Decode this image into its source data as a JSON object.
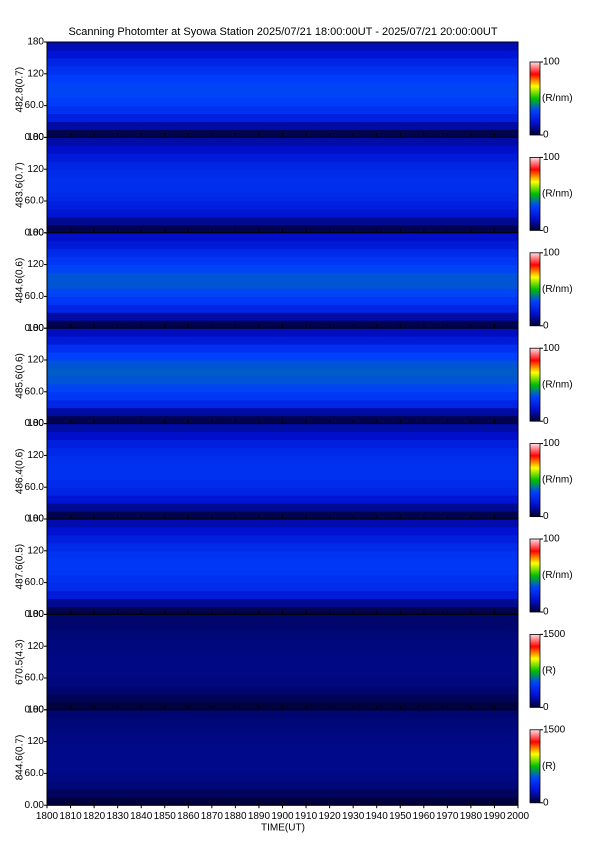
{
  "chart_data": {
    "type": "heatmap",
    "title": "Scanning Photomter at Syowa Station 2025/07/21 18:00:00UT - 2025/07/21 20:00:00UT",
    "xlabel": "TIME(UT)",
    "xlim": [
      1800,
      2000
    ],
    "xticks": [
      1800,
      1810,
      1820,
      1830,
      1840,
      1850,
      1860,
      1870,
      1880,
      1890,
      1900,
      1910,
      1920,
      1930,
      1940,
      1950,
      1960,
      1970,
      1980,
      1990,
      2000
    ],
    "ylim": [
      0,
      180
    ],
    "yticks": [
      {
        "value": 0,
        "label": "0.00"
      },
      {
        "value": 60,
        "label": "60.0"
      },
      {
        "value": 120,
        "label": "120"
      },
      {
        "value": 180,
        "label": "180"
      }
    ],
    "y_bins": [
      0,
      15,
      30,
      45,
      60,
      75,
      90,
      105,
      120,
      135,
      150,
      165,
      180
    ],
    "colormap": [
      "#000030",
      "#0010d0",
      "#0040ff",
      "#00c000",
      "#ffff00",
      "#ff0000",
      "#ffe0e8"
    ],
    "panels": [
      {
        "ylabel": "482.8(0.7)",
        "unit": "(R/nm)",
        "clim": [
          0,
          100
        ],
        "cticks": [
          0,
          100
        ],
        "values": [
          3,
          12,
          22,
          28,
          32,
          34,
          34,
          32,
          28,
          24,
          18,
          14
        ]
      },
      {
        "ylabel": "483.6(0.7)",
        "unit": "(R/nm)",
        "clim": [
          0,
          100
        ],
        "cticks": [
          0,
          100
        ],
        "values": [
          3,
          10,
          18,
          22,
          25,
          27,
          27,
          26,
          24,
          20,
          16,
          12
        ]
      },
      {
        "ylabel": "484.6(0.6)",
        "unit": "(R/nm)",
        "clim": [
          0,
          100
        ],
        "cticks": [
          0,
          100
        ],
        "values": [
          3,
          12,
          24,
          30,
          34,
          36,
          36,
          34,
          30,
          26,
          20,
          16
        ]
      },
      {
        "ylabel": "485.6(0.6)",
        "unit": "(R/nm)",
        "clim": [
          0,
          100
        ],
        "cticks": [
          0,
          100
        ],
        "values": [
          3,
          12,
          24,
          30,
          34,
          36,
          37,
          36,
          33,
          28,
          20,
          15
        ]
      },
      {
        "ylabel": "486.4(0.6)",
        "unit": "(R/nm)",
        "clim": [
          0,
          100
        ],
        "cticks": [
          0,
          100
        ],
        "values": [
          3,
          10,
          18,
          24,
          26,
          28,
          28,
          27,
          25,
          22,
          16,
          12
        ]
      },
      {
        "ylabel": "487.6(0.5)",
        "unit": "(R/nm)",
        "clim": [
          0,
          100
        ],
        "cticks": [
          0,
          100
        ],
        "values": [
          3,
          10,
          20,
          26,
          28,
          30,
          30,
          29,
          26,
          22,
          17,
          13
        ]
      },
      {
        "ylabel": "670.5(4.3)",
        "unit": "(R)",
        "clim": [
          0,
          1500
        ],
        "cticks": [
          0,
          1500
        ],
        "values": [
          20,
          60,
          100,
          120,
          130,
          130,
          130,
          125,
          120,
          110,
          100,
          90
        ]
      },
      {
        "ylabel": "844.6(0.7)",
        "unit": "(R)",
        "clim": [
          0,
          1500
        ],
        "cticks": [
          0,
          1500
        ],
        "values": [
          20,
          70,
          110,
          130,
          140,
          140,
          140,
          135,
          130,
          120,
          110,
          100
        ]
      }
    ]
  }
}
